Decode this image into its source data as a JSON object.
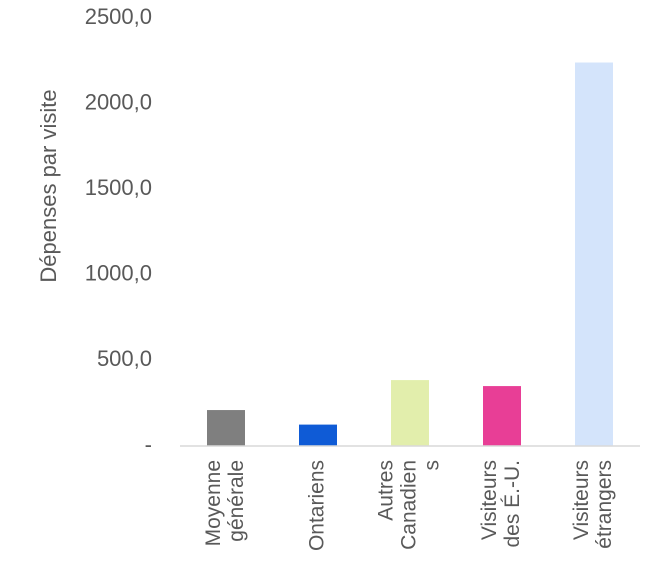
{
  "chart_data": {
    "type": "bar",
    "title": "",
    "xlabel": "",
    "ylabel": "Dépenses par visite",
    "ylim": [
      0,
      2500
    ],
    "grid": false,
    "legend": "none",
    "yticks": [
      {
        "value": 0,
        "label": "-"
      },
      {
        "value": 500,
        "label": "500,0"
      },
      {
        "value": 1000,
        "label": "1000,0"
      },
      {
        "value": 1500,
        "label": "1500,0"
      },
      {
        "value": 2000,
        "label": "2000,0"
      },
      {
        "value": 2500,
        "label": "2500,0"
      }
    ],
    "categories": [
      {
        "lines": [
          "Moyenne",
          "générale"
        ]
      },
      {
        "lines": [
          "Ontariens"
        ]
      },
      {
        "lines": [
          "Autres",
          "Canadien",
          "s"
        ]
      },
      {
        "lines": [
          "Visiteurs",
          "des É.-U."
        ]
      },
      {
        "lines": [
          "Visiteurs",
          "étrangers"
        ]
      }
    ],
    "values": [
      210,
      125,
      385,
      350,
      2240
    ],
    "colors": [
      "#7f7f7f",
      "#0f5bd6",
      "#e2eeac",
      "#e83e96",
      "#d4e4fb"
    ]
  }
}
